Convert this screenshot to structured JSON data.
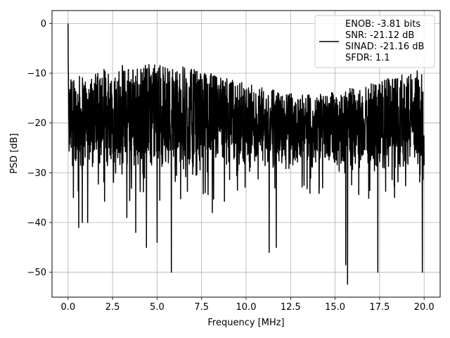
{
  "chart_data": {
    "type": "line",
    "xlabel": "Frequency [MHz]",
    "ylabel": "PSD [dB]",
    "xlim": [
      -0.9,
      20.9
    ],
    "ylim": [
      -55,
      2.6
    ],
    "xticks": [
      0.0,
      2.5,
      5.0,
      7.5,
      10.0,
      12.5,
      15.0,
      17.5,
      20.0
    ],
    "xtick_labels": [
      "0.0",
      "2.5",
      "5.0",
      "7.5",
      "10.0",
      "12.5",
      "15.0",
      "17.5",
      "20.0"
    ],
    "yticks": [
      0,
      -10,
      -20,
      -30,
      -40,
      -50
    ],
    "ytick_labels": [
      "0",
      "−10",
      "−20",
      "−30",
      "−40",
      "−50"
    ],
    "grid": true,
    "legend_position": "top-right",
    "legend_lines": [
      "ENOB: -3.81 bits",
      "SNR: -21.12 dB",
      "SINAD: -21.16 dB",
      "SFDR: 1.1"
    ],
    "series": [
      {
        "color": "#000000",
        "x_range": [
          0,
          20
        ],
        "noise_band": {
          "upper": [
            -14,
            -8
          ],
          "lower": [
            -26,
            -30
          ]
        },
        "peak": {
          "x": 0.0,
          "y": 0.0
        },
        "deep_dips": [
          {
            "x": 0.3,
            "y": -35
          },
          {
            "x": 0.6,
            "y": -41
          },
          {
            "x": 0.8,
            "y": -40
          },
          {
            "x": 1.1,
            "y": -40
          },
          {
            "x": 3.3,
            "y": -39
          },
          {
            "x": 3.8,
            "y": -42
          },
          {
            "x": 4.4,
            "y": -45
          },
          {
            "x": 5.0,
            "y": -44
          },
          {
            "x": 5.8,
            "y": -50
          },
          {
            "x": 7.7,
            "y": -34
          },
          {
            "x": 8.1,
            "y": -38
          },
          {
            "x": 11.3,
            "y": -46
          },
          {
            "x": 11.7,
            "y": -45
          },
          {
            "x": 15.6,
            "y": -48.5
          },
          {
            "x": 15.7,
            "y": -52.4
          },
          {
            "x": 17.4,
            "y": -50
          },
          {
            "x": 19.9,
            "y": -50
          }
        ]
      }
    ]
  }
}
